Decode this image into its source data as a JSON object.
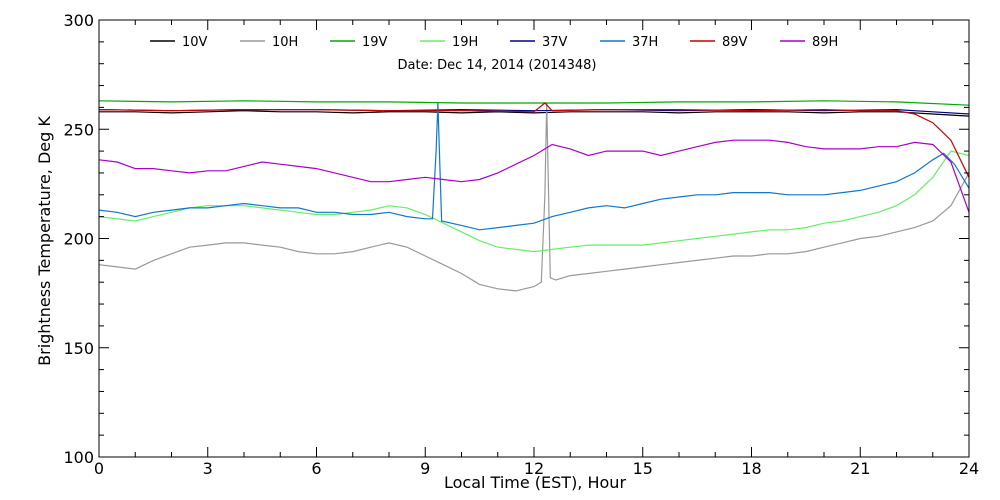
{
  "chart_data": {
    "type": "line",
    "title": "Date: Dec 14, 2014 (2014348)",
    "xlabel": "Local Time (EST), Hour",
    "ylabel": "Brightness Temperature, Deg K",
    "xlim": [
      0,
      24
    ],
    "ylim": [
      100,
      300
    ],
    "x_ticks": [
      0,
      3,
      6,
      9,
      12,
      15,
      18,
      21,
      24
    ],
    "y_ticks": [
      100,
      150,
      200,
      250,
      300
    ],
    "grid": false,
    "legend_position": "top",
    "series": [
      {
        "name": "10V",
        "color": "#000000",
        "points": [
          [
            0,
            258
          ],
          [
            1,
            258
          ],
          [
            2,
            257.5
          ],
          [
            3,
            258
          ],
          [
            4,
            258.5
          ],
          [
            5,
            258
          ],
          [
            6,
            258
          ],
          [
            7,
            257.5
          ],
          [
            8,
            258
          ],
          [
            9,
            258
          ],
          [
            10,
            257.5
          ],
          [
            11,
            258
          ],
          [
            12,
            257.5
          ],
          [
            13,
            258
          ],
          [
            14,
            258
          ],
          [
            15,
            258
          ],
          [
            16,
            257.5
          ],
          [
            17,
            258
          ],
          [
            18,
            258
          ],
          [
            19,
            258
          ],
          [
            20,
            257.5
          ],
          [
            21,
            258
          ],
          [
            22,
            258
          ],
          [
            23,
            257
          ],
          [
            24,
            256
          ]
        ]
      },
      {
        "name": "10H",
        "color": "#999999",
        "points": [
          [
            0,
            188
          ],
          [
            0.5,
            187
          ],
          [
            1,
            186
          ],
          [
            1.5,
            190
          ],
          [
            2,
            193
          ],
          [
            2.5,
            196
          ],
          [
            3,
            197
          ],
          [
            3.5,
            198
          ],
          [
            4,
            198
          ],
          [
            4.5,
            197
          ],
          [
            5,
            196
          ],
          [
            5.5,
            194
          ],
          [
            6,
            193
          ],
          [
            6.5,
            193
          ],
          [
            7,
            194
          ],
          [
            7.5,
            196
          ],
          [
            8,
            198
          ],
          [
            8.5,
            196
          ],
          [
            9,
            192
          ],
          [
            9.5,
            188
          ],
          [
            10,
            184
          ],
          [
            10.5,
            179
          ],
          [
            11,
            177
          ],
          [
            11.5,
            176
          ],
          [
            12,
            178
          ],
          [
            12.2,
            180
          ],
          [
            12.3,
            220
          ],
          [
            12.35,
            262
          ],
          [
            12.45,
            182
          ],
          [
            12.6,
            181
          ],
          [
            13,
            183
          ],
          [
            13.5,
            184
          ],
          [
            14,
            185
          ],
          [
            14.5,
            186
          ],
          [
            15,
            187
          ],
          [
            15.5,
            188
          ],
          [
            16,
            189
          ],
          [
            16.5,
            190
          ],
          [
            17,
            191
          ],
          [
            17.5,
            192
          ],
          [
            18,
            192
          ],
          [
            18.5,
            193
          ],
          [
            19,
            193
          ],
          [
            19.5,
            194
          ],
          [
            20,
            196
          ],
          [
            20.5,
            198
          ],
          [
            21,
            200
          ],
          [
            21.5,
            201
          ],
          [
            22,
            203
          ],
          [
            22.5,
            205
          ],
          [
            23,
            208
          ],
          [
            23.5,
            215
          ],
          [
            24,
            230
          ]
        ]
      },
      {
        "name": "19V",
        "color": "#00aa00",
        "points": [
          [
            0,
            263
          ],
          [
            2,
            262.5
          ],
          [
            4,
            263
          ],
          [
            6,
            262.5
          ],
          [
            8,
            262.5
          ],
          [
            10,
            262
          ],
          [
            12,
            262
          ],
          [
            14,
            262
          ],
          [
            16,
            262.5
          ],
          [
            18,
            262.5
          ],
          [
            20,
            263
          ],
          [
            22,
            262.5
          ],
          [
            24,
            261
          ]
        ]
      },
      {
        "name": "19H",
        "color": "#66ee66",
        "points": [
          [
            0,
            210
          ],
          [
            1,
            208
          ],
          [
            1.5,
            210
          ],
          [
            2,
            212
          ],
          [
            2.5,
            214
          ],
          [
            3,
            215
          ],
          [
            3.5,
            215
          ],
          [
            4,
            215
          ],
          [
            4.5,
            214
          ],
          [
            5,
            213
          ],
          [
            5.5,
            212
          ],
          [
            6,
            211
          ],
          [
            6.5,
            211
          ],
          [
            7,
            212
          ],
          [
            7.5,
            213
          ],
          [
            8,
            215
          ],
          [
            8.5,
            214
          ],
          [
            9,
            211
          ],
          [
            9.5,
            207
          ],
          [
            10,
            203
          ],
          [
            10.5,
            199
          ],
          [
            11,
            196
          ],
          [
            11.5,
            195
          ],
          [
            12,
            194
          ],
          [
            12.5,
            195
          ],
          [
            13,
            196
          ],
          [
            13.5,
            197
          ],
          [
            14,
            197
          ],
          [
            14.5,
            197
          ],
          [
            15,
            197
          ],
          [
            15.5,
            198
          ],
          [
            16,
            199
          ],
          [
            16.5,
            200
          ],
          [
            17,
            201
          ],
          [
            17.5,
            202
          ],
          [
            18,
            203
          ],
          [
            18.5,
            204
          ],
          [
            19,
            204
          ],
          [
            19.5,
            205
          ],
          [
            20,
            207
          ],
          [
            20.5,
            208
          ],
          [
            21,
            210
          ],
          [
            21.5,
            212
          ],
          [
            22,
            215
          ],
          [
            22.5,
            220
          ],
          [
            23,
            228
          ],
          [
            23.5,
            240
          ],
          [
            24,
            238
          ]
        ]
      },
      {
        "name": "37V",
        "color": "#000088",
        "points": [
          [
            0,
            259
          ],
          [
            2,
            258.5
          ],
          [
            4,
            259
          ],
          [
            6,
            259
          ],
          [
            8,
            258.5
          ],
          [
            10,
            259
          ],
          [
            12,
            258.5
          ],
          [
            14,
            259
          ],
          [
            16,
            258.5
          ],
          [
            18,
            259
          ],
          [
            20,
            258.5
          ],
          [
            22,
            259
          ],
          [
            23,
            258
          ],
          [
            24,
            257
          ]
        ]
      },
      {
        "name": "37H",
        "color": "#1177cc",
        "points": [
          [
            0,
            213
          ],
          [
            0.5,
            212
          ],
          [
            1,
            210
          ],
          [
            1.5,
            212
          ],
          [
            2,
            213
          ],
          [
            2.5,
            214
          ],
          [
            3,
            214
          ],
          [
            3.5,
            215
          ],
          [
            4,
            216
          ],
          [
            4.5,
            215
          ],
          [
            5,
            214
          ],
          [
            5.5,
            214
          ],
          [
            6,
            212
          ],
          [
            6.5,
            212
          ],
          [
            7,
            211
          ],
          [
            7.5,
            211
          ],
          [
            8,
            212
          ],
          [
            8.5,
            210
          ],
          [
            9,
            209
          ],
          [
            9.2,
            209
          ],
          [
            9.3,
            240
          ],
          [
            9.35,
            262
          ],
          [
            9.45,
            208
          ],
          [
            10,
            206
          ],
          [
            10.5,
            204
          ],
          [
            11,
            205
          ],
          [
            11.5,
            206
          ],
          [
            12,
            207
          ],
          [
            12.5,
            210
          ],
          [
            13,
            212
          ],
          [
            13.5,
            214
          ],
          [
            14,
            215
          ],
          [
            14.5,
            214
          ],
          [
            15,
            216
          ],
          [
            15.5,
            218
          ],
          [
            16,
            219
          ],
          [
            16.5,
            220
          ],
          [
            17,
            220
          ],
          [
            17.5,
            221
          ],
          [
            18,
            221
          ],
          [
            18.5,
            221
          ],
          [
            19,
            220
          ],
          [
            19.5,
            220
          ],
          [
            20,
            220
          ],
          [
            20.5,
            221
          ],
          [
            21,
            222
          ],
          [
            21.5,
            224
          ],
          [
            22,
            226
          ],
          [
            22.5,
            230
          ],
          [
            23,
            236
          ],
          [
            23.3,
            239
          ],
          [
            23.6,
            234
          ],
          [
            24,
            223
          ]
        ]
      },
      {
        "name": "89V",
        "color": "#cc0000",
        "points": [
          [
            0,
            259
          ],
          [
            2,
            258.5
          ],
          [
            4,
            259
          ],
          [
            6,
            259
          ],
          [
            8,
            258.5
          ],
          [
            10,
            258.5
          ],
          [
            12,
            258
          ],
          [
            12.3,
            262
          ],
          [
            12.5,
            258.5
          ],
          [
            14,
            259
          ],
          [
            16,
            259
          ],
          [
            18,
            258.5
          ],
          [
            20,
            259
          ],
          [
            21,
            258.5
          ],
          [
            22,
            258.5
          ],
          [
            22.5,
            257
          ],
          [
            23,
            253
          ],
          [
            23.5,
            245
          ],
          [
            24,
            228
          ]
        ]
      },
      {
        "name": "89H",
        "color": "#aa00cc",
        "points": [
          [
            0,
            236
          ],
          [
            0.5,
            235
          ],
          [
            1,
            232
          ],
          [
            1.5,
            232
          ],
          [
            2,
            231
          ],
          [
            2.5,
            230
          ],
          [
            3,
            231
          ],
          [
            3.5,
            231
          ],
          [
            4,
            233
          ],
          [
            4.5,
            235
          ],
          [
            5,
            234
          ],
          [
            5.5,
            233
          ],
          [
            6,
            232
          ],
          [
            6.5,
            230
          ],
          [
            7,
            228
          ],
          [
            7.5,
            226
          ],
          [
            8,
            226
          ],
          [
            8.5,
            227
          ],
          [
            9,
            228
          ],
          [
            9.5,
            227
          ],
          [
            10,
            226
          ],
          [
            10.5,
            227
          ],
          [
            11,
            230
          ],
          [
            11.5,
            234
          ],
          [
            12,
            238
          ],
          [
            12.5,
            243
          ],
          [
            13,
            241
          ],
          [
            13.5,
            238
          ],
          [
            14,
            240
          ],
          [
            14.5,
            240
          ],
          [
            15,
            240
          ],
          [
            15.5,
            238
          ],
          [
            16,
            240
          ],
          [
            16.5,
            242
          ],
          [
            17,
            244
          ],
          [
            17.5,
            245
          ],
          [
            18,
            245
          ],
          [
            18.5,
            245
          ],
          [
            19,
            244
          ],
          [
            19.5,
            242
          ],
          [
            20,
            241
          ],
          [
            20.5,
            241
          ],
          [
            21,
            241
          ],
          [
            21.5,
            242
          ],
          [
            22,
            242
          ],
          [
            22.5,
            244
          ],
          [
            23,
            243
          ],
          [
            23.5,
            235
          ],
          [
            24,
            212
          ]
        ]
      }
    ]
  }
}
